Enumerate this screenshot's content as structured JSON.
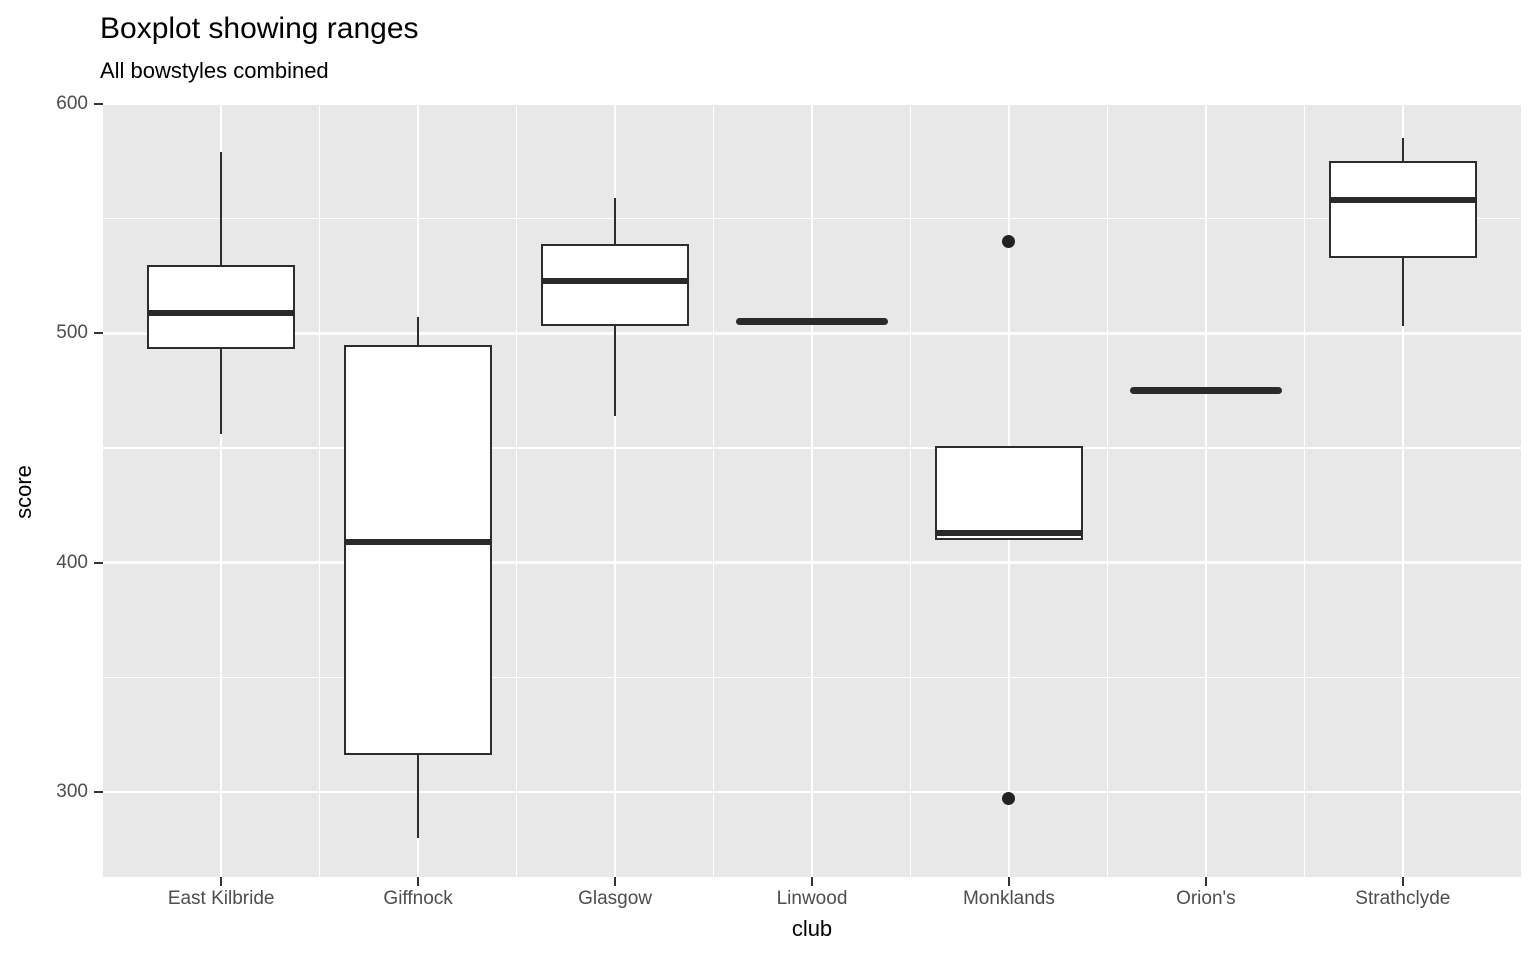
{
  "chart_data": {
    "type": "boxplot",
    "title": "Boxplot showing ranges",
    "subtitle": "All bowstyles combined",
    "xlabel": "club",
    "ylabel": "score",
    "ylim": [
      263,
      600
    ],
    "yticks": [
      600,
      500,
      400,
      300
    ],
    "yminor_ticks": [
      550,
      450,
      350
    ],
    "grid": "white major and minor gridlines on gray panel",
    "legend": "none",
    "categories": [
      "East Kilbride",
      "Giffnock",
      "Glasgow",
      "Linwood",
      "Monklands",
      "Orion's",
      "Strathclyde"
    ],
    "series": [
      {
        "club": "East Kilbride",
        "min": 456,
        "q1": 493,
        "median": 509,
        "q3": 530,
        "max": 579,
        "outliers": []
      },
      {
        "club": "Giffnock",
        "min": 280,
        "q1": 316,
        "median": 409,
        "q3": 495,
        "max": 507,
        "outliers": []
      },
      {
        "club": "Glasgow",
        "min": 464,
        "q1": 503,
        "median": 523,
        "q3": 539,
        "max": 559,
        "outliers": []
      },
      {
        "club": "Linwood",
        "min": 505,
        "q1": 505,
        "median": 505,
        "q3": 505,
        "max": 505,
        "outliers": []
      },
      {
        "club": "Monklands",
        "min": 410,
        "q1": 410,
        "median": 413,
        "q3": 451,
        "max": 451,
        "outliers": [
          540,
          297
        ]
      },
      {
        "club": "Orion's",
        "min": 475,
        "q1": 475,
        "median": 475,
        "q3": 475,
        "max": 475,
        "outliers": []
      },
      {
        "club": "Strathclyde",
        "min": 503,
        "q1": 533,
        "median": 558,
        "q3": 575,
        "max": 585,
        "outliers": []
      }
    ]
  },
  "colors": {
    "panel_background": "#E8E8E8",
    "gridline": "#FFFFFF",
    "box_stroke": "#2D2D2D",
    "box_fill": "#FFFFFF",
    "median": "#2A2A2A",
    "outlier": "#222222",
    "axis_text": "#4D4D4D",
    "axis_title": "#000000",
    "tick_mark": "#333333"
  }
}
